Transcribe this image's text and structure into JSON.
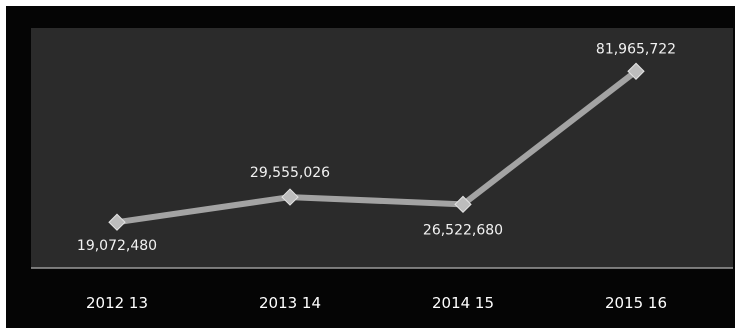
{
  "chart_data": {
    "type": "line",
    "title": "",
    "xlabel": "",
    "ylabel": "",
    "categories": [
      "2012 13",
      "2013 14",
      "2014 15",
      "2015 16"
    ],
    "series": [
      {
        "values": [
          19072480,
          29555026,
          26522680,
          81965722
        ],
        "labels": [
          "19,072,480",
          "29,555,026",
          "26,522,680",
          "81,965,722"
        ]
      }
    ],
    "ylim": [
      0,
      100000000
    ],
    "grid": false,
    "legend": "none",
    "colors": {
      "background": "#050505",
      "plot_area": "#2b2b2b",
      "line": "#a3a3a3",
      "marker": "#bdbdbd",
      "text": "#ffffff"
    }
  }
}
